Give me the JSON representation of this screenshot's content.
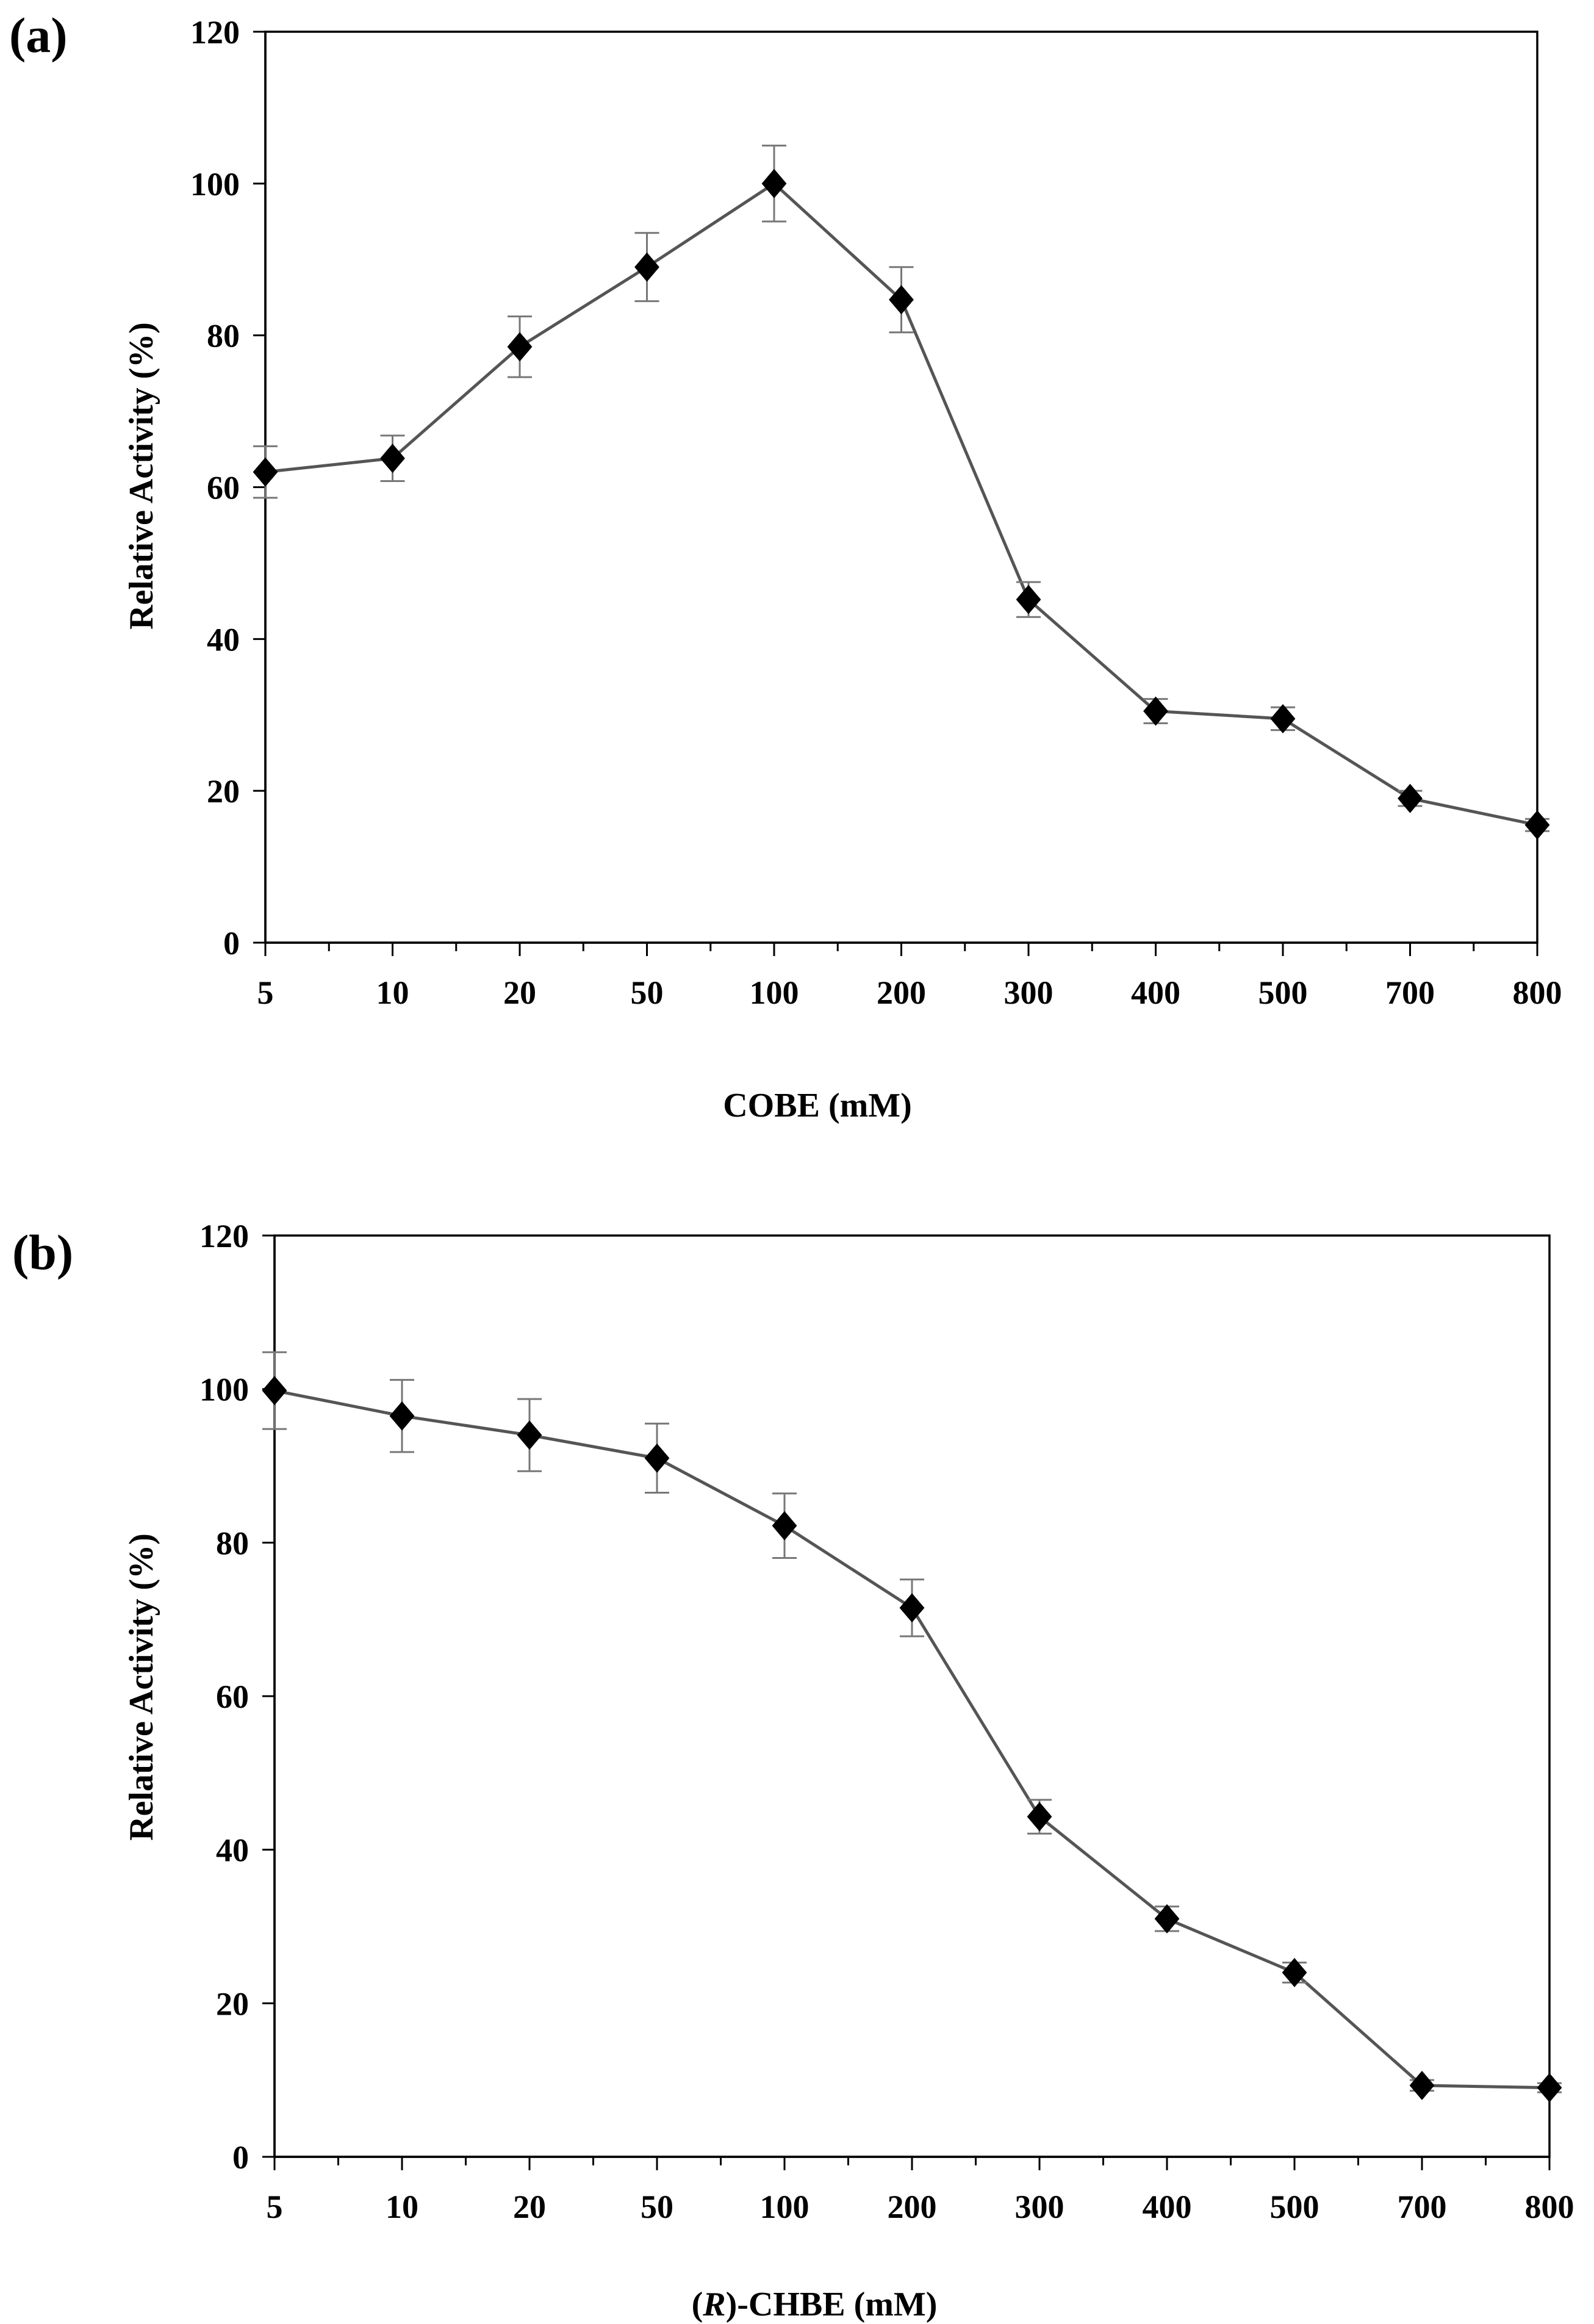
{
  "chart_data": [
    {
      "type": "line",
      "panel_label": "(a)",
      "categories": [
        "5",
        "10",
        "20",
        "50",
        "100",
        "200",
        "300",
        "400",
        "500",
        "700",
        "800"
      ],
      "series": [
        {
          "name": "COBE",
          "values": [
            62.0,
            63.8,
            78.5,
            89.0,
            100.0,
            84.7,
            45.2,
            30.5,
            29.5,
            19.0,
            15.5
          ],
          "errors": [
            3.4,
            3.0,
            4.0,
            4.5,
            5.0,
            4.3,
            2.3,
            1.6,
            1.5,
            1.0,
            0.8
          ]
        }
      ],
      "xlabel": "COBE (mM)",
      "ylabel": "Relative Activity (%)",
      "ylim": [
        0,
        120
      ],
      "yticks": [
        "0",
        "20",
        "40",
        "60",
        "80",
        "100",
        "120"
      ],
      "marker": "diamond",
      "color": "#000000",
      "line_color": "#555555"
    },
    {
      "type": "line",
      "panel_label": "(b)",
      "categories": [
        "5",
        "10",
        "20",
        "50",
        "100",
        "200",
        "300",
        "400",
        "500",
        "700",
        "800"
      ],
      "series": [
        {
          "name": "(R)-CHBE",
          "values": [
            99.8,
            96.5,
            94.0,
            91.0,
            82.2,
            71.5,
            44.3,
            31.0,
            24.0,
            9.3,
            9.0
          ],
          "errors": [
            5.0,
            4.7,
            4.7,
            4.5,
            4.2,
            3.7,
            2.2,
            1.6,
            1.3,
            0.7,
            0.6
          ]
        }
      ],
      "xlabel_prefix": "(",
      "xlabel_italic": "R",
      "xlabel_suffix": ")-CHBE (mM)",
      "ylabel": "Relative Activity (%)",
      "ylim": [
        0,
        120
      ],
      "yticks": [
        "0",
        "20",
        "40",
        "60",
        "80",
        "100",
        "120"
      ],
      "marker": "diamond",
      "color": "#000000",
      "line_color": "#555555"
    }
  ]
}
